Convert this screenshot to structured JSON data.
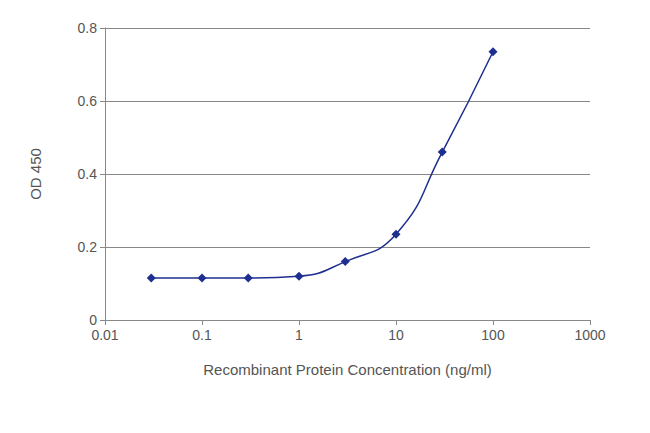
{
  "chart_data": {
    "type": "line",
    "x_label": "Recombinant Protein Concentration (ng/ml)",
    "y_label": "OD 450",
    "x": [
      0.03,
      0.1,
      0.3,
      1,
      3,
      10,
      30,
      100
    ],
    "values": [
      0.115,
      0.115,
      0.115,
      0.12,
      0.16,
      0.235,
      0.46,
      0.735
    ],
    "color": "#1f2f8f",
    "marker": "diamond",
    "log": "x",
    "xlim": [
      0.01,
      1000
    ],
    "xticks": [
      0.01,
      0.1,
      1,
      10,
      100,
      1000
    ],
    "ylim": [
      0,
      0.8
    ],
    "yticks": [
      0,
      0.2,
      0.4,
      0.6,
      0.8
    ],
    "grid": true
  }
}
